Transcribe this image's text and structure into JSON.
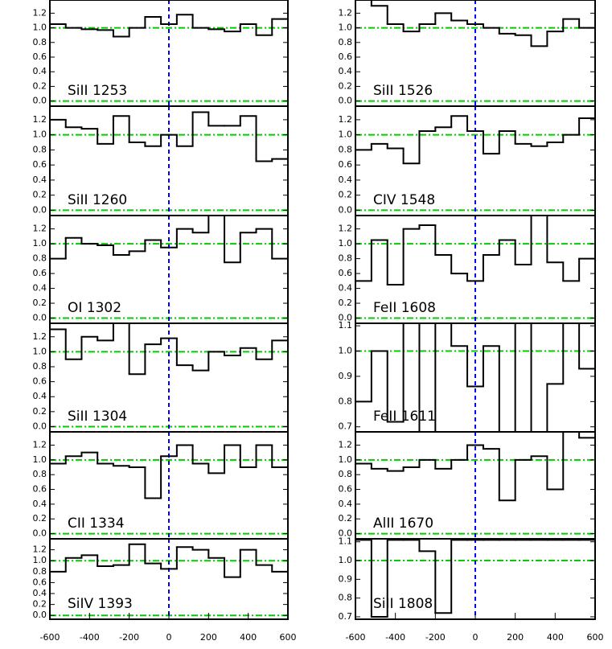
{
  "chart_data": [
    {
      "type": "histogram",
      "title": "SiII 1253",
      "color": "#000000",
      "hline_color": "#00cc00",
      "vline_color": "#0000ff",
      "bins": [
        -600,
        -520,
        -440,
        -360,
        -280,
        -200,
        -120,
        -40,
        40,
        120,
        200,
        280,
        360,
        440,
        520,
        600
      ],
      "values": [
        1.05,
        1.0,
        0.98,
        0.97,
        0.88,
        1.0,
        1.15,
        1.05,
        1.18,
        1.0,
        0.98,
        0.95,
        1.05,
        0.9,
        1.12
      ],
      "xlim": [
        -600,
        600
      ],
      "ylim": [
        -0.07,
        1.38
      ],
      "yticks": [
        {
          "value": 0,
          "label": "0.0"
        },
        {
          "value": 0.2,
          "label": "0.2"
        },
        {
          "value": 0.4,
          "label": "0.4"
        },
        {
          "value": 0.6,
          "label": "0.6"
        },
        {
          "value": 0.8,
          "label": "0.8"
        },
        {
          "value": 1,
          "label": "1.0"
        },
        {
          "value": 1.2,
          "label": "1.2"
        }
      ],
      "hlines": [
        0,
        1
      ],
      "vlines": [
        0
      ]
    },
    {
      "type": "histogram",
      "title": "SiII 1260",
      "color": "#000000",
      "hline_color": "#00cc00",
      "vline_color": "#0000ff",
      "bins": [
        -600,
        -520,
        -440,
        -360,
        -280,
        -200,
        -120,
        -40,
        40,
        120,
        200,
        280,
        360,
        440,
        520,
        600
      ],
      "values": [
        1.2,
        1.1,
        1.08,
        0.88,
        1.25,
        0.9,
        0.85,
        1.0,
        0.85,
        1.3,
        1.12,
        1.12,
        1.25,
        0.65,
        0.68
      ],
      "xlim": [
        -600,
        600
      ],
      "ylim": [
        -0.07,
        1.38
      ],
      "yticks": [
        {
          "value": 0,
          "label": "0.0"
        },
        {
          "value": 0.2,
          "label": "0.2"
        },
        {
          "value": 0.4,
          "label": "0.4"
        },
        {
          "value": 0.6,
          "label": "0.6"
        },
        {
          "value": 0.8,
          "label": "0.8"
        },
        {
          "value": 1,
          "label": "1.0"
        },
        {
          "value": 1.2,
          "label": "1.2"
        }
      ],
      "hlines": [
        0,
        1
      ],
      "vlines": [
        0
      ]
    },
    {
      "type": "histogram",
      "title": "OI 1302",
      "color": "#000000",
      "hline_color": "#00cc00",
      "vline_color": "#0000ff",
      "bins": [
        -600,
        -520,
        -440,
        -360,
        -280,
        -200,
        -120,
        -40,
        40,
        120,
        200,
        280,
        360,
        440,
        520,
        600
      ],
      "values": [
        0.8,
        1.08,
        1.0,
        0.98,
        0.85,
        0.9,
        1.05,
        0.95,
        1.2,
        1.15,
        1.38,
        0.75,
        1.15,
        1.2,
        0.8
      ],
      "xlim": [
        -600,
        600
      ],
      "ylim": [
        -0.07,
        1.38
      ],
      "yticks": [
        {
          "value": 0,
          "label": "0.0"
        },
        {
          "value": 0.2,
          "label": "0.2"
        },
        {
          "value": 0.4,
          "label": "0.4"
        },
        {
          "value": 0.6,
          "label": "0.6"
        },
        {
          "value": 0.8,
          "label": "0.8"
        },
        {
          "value": 1,
          "label": "1.0"
        },
        {
          "value": 1.2,
          "label": "1.2"
        }
      ],
      "hlines": [
        0,
        1
      ],
      "vlines": [
        0
      ]
    },
    {
      "type": "histogram",
      "title": "SiII 1304",
      "color": "#000000",
      "hline_color": "#00cc00",
      "vline_color": "#0000ff",
      "bins": [
        -600,
        -520,
        -440,
        -360,
        -280,
        -200,
        -120,
        -40,
        40,
        120,
        200,
        280,
        360,
        440,
        520,
        600
      ],
      "values": [
        1.3,
        0.9,
        1.2,
        1.15,
        1.38,
        0.7,
        1.1,
        1.18,
        0.82,
        0.75,
        1.0,
        0.95,
        1.05,
        0.9,
        1.15
      ],
      "xlim": [
        -600,
        600
      ],
      "ylim": [
        -0.07,
        1.38
      ],
      "yticks": [
        {
          "value": 0,
          "label": "0.0"
        },
        {
          "value": 0.2,
          "label": "0.2"
        },
        {
          "value": 0.4,
          "label": "0.4"
        },
        {
          "value": 0.6,
          "label": "0.6"
        },
        {
          "value": 0.8,
          "label": "0.8"
        },
        {
          "value": 1,
          "label": "1.0"
        },
        {
          "value": 1.2,
          "label": "1.2"
        }
      ],
      "hlines": [
        0,
        1
      ],
      "vlines": [
        0
      ]
    },
    {
      "type": "histogram",
      "title": "CII 1334",
      "color": "#000000",
      "hline_color": "#00cc00",
      "vline_color": "#0000ff",
      "bins": [
        -600,
        -520,
        -440,
        -360,
        -280,
        -200,
        -120,
        -40,
        40,
        120,
        200,
        280,
        360,
        440,
        520,
        600
      ],
      "values": [
        0.95,
        1.05,
        1.1,
        0.95,
        0.92,
        0.9,
        0.48,
        1.05,
        1.2,
        0.95,
        0.82,
        1.2,
        0.9,
        1.2,
        0.9
      ],
      "xlim": [
        -600,
        600
      ],
      "ylim": [
        -0.07,
        1.38
      ],
      "yticks": [
        {
          "value": 0,
          "label": "0.0"
        },
        {
          "value": 0.2,
          "label": "0.2"
        },
        {
          "value": 0.4,
          "label": "0.4"
        },
        {
          "value": 0.6,
          "label": "0.6"
        },
        {
          "value": 0.8,
          "label": "0.8"
        },
        {
          "value": 1,
          "label": "1.0"
        },
        {
          "value": 1.2,
          "label": "1.2"
        }
      ],
      "hlines": [
        0,
        1
      ],
      "vlines": [
        0
      ]
    },
    {
      "type": "histogram",
      "title": "SiIV 1393",
      "color": "#000000",
      "hline_color": "#00cc00",
      "vline_color": "#0000ff",
      "bins": [
        -600,
        -520,
        -440,
        -360,
        -280,
        -200,
        -120,
        -40,
        40,
        120,
        200,
        280,
        360,
        440,
        520,
        600
      ],
      "values": [
        0.8,
        1.05,
        1.1,
        0.9,
        0.92,
        1.3,
        0.95,
        0.85,
        1.25,
        1.2,
        1.05,
        0.7,
        1.2,
        0.92,
        0.8
      ],
      "xlim": [
        -600,
        600
      ],
      "ylim": [
        -0.07,
        1.4
      ],
      "yticks": [
        {
          "value": 0,
          "label": "0.0"
        },
        {
          "value": 0.2,
          "label": "0.2"
        },
        {
          "value": 0.4,
          "label": "0.4"
        },
        {
          "value": 0.6,
          "label": "0.6"
        },
        {
          "value": 0.8,
          "label": "0.8"
        },
        {
          "value": 1,
          "label": "1.0"
        },
        {
          "value": 1.2,
          "label": "1.2"
        }
      ],
      "hlines": [
        0,
        1
      ],
      "vlines": [
        0
      ],
      "xticks": [
        -600,
        -400,
        -200,
        0,
        200,
        400,
        600
      ]
    },
    {
      "type": "histogram",
      "title": "SiII 1526",
      "color": "#000000",
      "hline_color": "#00cc00",
      "vline_color": "#0000ff",
      "bins": [
        -600,
        -520,
        -440,
        -360,
        -280,
        -200,
        -120,
        -40,
        40,
        120,
        200,
        280,
        360,
        440,
        520,
        600
      ],
      "values": [
        1.38,
        1.3,
        1.05,
        0.95,
        1.05,
        1.2,
        1.1,
        1.05,
        1.0,
        0.92,
        0.9,
        0.75,
        0.95,
        1.12,
        1.0
      ],
      "xlim": [
        -600,
        600
      ],
      "ylim": [
        -0.07,
        1.38
      ],
      "yticks": [
        {
          "value": 0,
          "label": "0.0"
        },
        {
          "value": 0.2,
          "label": "0.2"
        },
        {
          "value": 0.4,
          "label": "0.4"
        },
        {
          "value": 0.6,
          "label": "0.6"
        },
        {
          "value": 0.8,
          "label": "0.8"
        },
        {
          "value": 1,
          "label": "1.0"
        },
        {
          "value": 1.2,
          "label": "1.2"
        }
      ],
      "hlines": [
        0,
        1
      ],
      "vlines": [
        0
      ]
    },
    {
      "type": "histogram",
      "title": "CIV 1548",
      "color": "#000000",
      "hline_color": "#00cc00",
      "vline_color": "#0000ff",
      "bins": [
        -600,
        -520,
        -440,
        -360,
        -280,
        -200,
        -120,
        -40,
        40,
        120,
        200,
        280,
        360,
        440,
        520,
        600
      ],
      "values": [
        0.8,
        0.88,
        0.82,
        0.62,
        1.05,
        1.1,
        1.25,
        1.05,
        0.75,
        1.05,
        0.88,
        0.85,
        0.9,
        1.0,
        1.22
      ],
      "xlim": [
        -600,
        600
      ],
      "ylim": [
        -0.07,
        1.38
      ],
      "yticks": [
        {
          "value": 0,
          "label": "0.0"
        },
        {
          "value": 0.2,
          "label": "0.2"
        },
        {
          "value": 0.4,
          "label": "0.4"
        },
        {
          "value": 0.6,
          "label": "0.6"
        },
        {
          "value": 0.8,
          "label": "0.8"
        },
        {
          "value": 1,
          "label": "1.0"
        },
        {
          "value": 1.2,
          "label": "1.2"
        }
      ],
      "hlines": [
        0,
        1
      ],
      "vlines": [
        0
      ]
    },
    {
      "type": "histogram",
      "title": "FeII 1608",
      "color": "#000000",
      "hline_color": "#00cc00",
      "vline_color": "#0000ff",
      "bins": [
        -600,
        -520,
        -440,
        -360,
        -280,
        -200,
        -120,
        -40,
        40,
        120,
        200,
        280,
        360,
        440,
        520,
        600
      ],
      "values": [
        0.5,
        1.05,
        0.45,
        1.2,
        1.25,
        0.85,
        0.6,
        0.5,
        0.85,
        1.05,
        0.72,
        1.38,
        0.75,
        0.5,
        0.8
      ],
      "xlim": [
        -600,
        600
      ],
      "ylim": [
        -0.07,
        1.38
      ],
      "yticks": [
        {
          "value": 0,
          "label": "0.0"
        },
        {
          "value": 0.2,
          "label": "0.2"
        },
        {
          "value": 0.4,
          "label": "0.4"
        },
        {
          "value": 0.6,
          "label": "0.6"
        },
        {
          "value": 0.8,
          "label": "0.8"
        },
        {
          "value": 1,
          "label": "1.0"
        },
        {
          "value": 1.2,
          "label": "1.2"
        }
      ],
      "hlines": [
        0,
        1
      ],
      "vlines": [
        0
      ]
    },
    {
      "type": "histogram",
      "title": "FeII 1611",
      "color": "#000000",
      "hline_color": "#00cc00",
      "vline_color": "#0000ff",
      "bins": [
        -600,
        -520,
        -440,
        -360,
        -280,
        -200,
        -120,
        -40,
        40,
        120,
        200,
        280,
        360,
        440,
        520,
        600
      ],
      "values": [
        0.8,
        1.0,
        0.72,
        1.11,
        0.68,
        1.11,
        1.02,
        0.86,
        1.02,
        0.68,
        1.11,
        0.68,
        0.87,
        1.11,
        0.93
      ],
      "xlim": [
        -600,
        600
      ],
      "ylim": [
        0.68,
        1.11
      ],
      "yticks": [
        0.7,
        0.8,
        0.9,
        {
          "value": 1,
          "label": "1.0"
        },
        1.1
      ],
      "hlines": [
        1
      ],
      "vlines": [
        0
      ]
    },
    {
      "type": "histogram",
      "title": "AlII 1670",
      "color": "#000000",
      "hline_color": "#00cc00",
      "vline_color": "#0000ff",
      "bins": [
        -600,
        -520,
        -440,
        -360,
        -280,
        -200,
        -120,
        -40,
        40,
        120,
        200,
        280,
        360,
        440,
        520,
        600
      ],
      "values": [
        0.95,
        0.88,
        0.85,
        0.9,
        1.0,
        0.88,
        1.0,
        1.2,
        1.15,
        0.45,
        1.0,
        1.05,
        0.6,
        1.38,
        1.3
      ],
      "xlim": [
        -600,
        600
      ],
      "ylim": [
        -0.07,
        1.38
      ],
      "yticks": [
        {
          "value": 0,
          "label": "0.0"
        },
        {
          "value": 0.2,
          "label": "0.2"
        },
        {
          "value": 0.4,
          "label": "0.4"
        },
        {
          "value": 0.6,
          "label": "0.6"
        },
        {
          "value": 0.8,
          "label": "0.8"
        },
        {
          "value": 1,
          "label": "1.0"
        },
        {
          "value": 1.2,
          "label": "1.2"
        }
      ],
      "hlines": [
        0,
        1
      ],
      "vlines": [
        0
      ]
    },
    {
      "type": "histogram",
      "title": "SiII 1808",
      "color": "#000000",
      "hline_color": "#00cc00",
      "vline_color": "#0000ff",
      "bins": [
        -600,
        -520,
        -440,
        -360,
        -280,
        -200,
        -120,
        -40,
        40,
        120,
        200,
        280,
        360,
        440,
        520,
        600
      ],
      "values": [
        1.11,
        0.7,
        1.11,
        1.11,
        1.05,
        0.72,
        1.11,
        1.11,
        1.11,
        1.11,
        1.11,
        1.11,
        1.11,
        1.11,
        1.11
      ],
      "xlim": [
        -600,
        600
      ],
      "ylim": [
        0.687,
        1.116
      ],
      "yticks": [
        0.7,
        0.8,
        0.9,
        {
          "value": 1,
          "label": "1.0"
        },
        1.1
      ],
      "hlines": [
        1
      ],
      "vlines": [
        0
      ],
      "xticks": [
        -600,
        -400,
        -200,
        0,
        200,
        400,
        600
      ]
    }
  ]
}
